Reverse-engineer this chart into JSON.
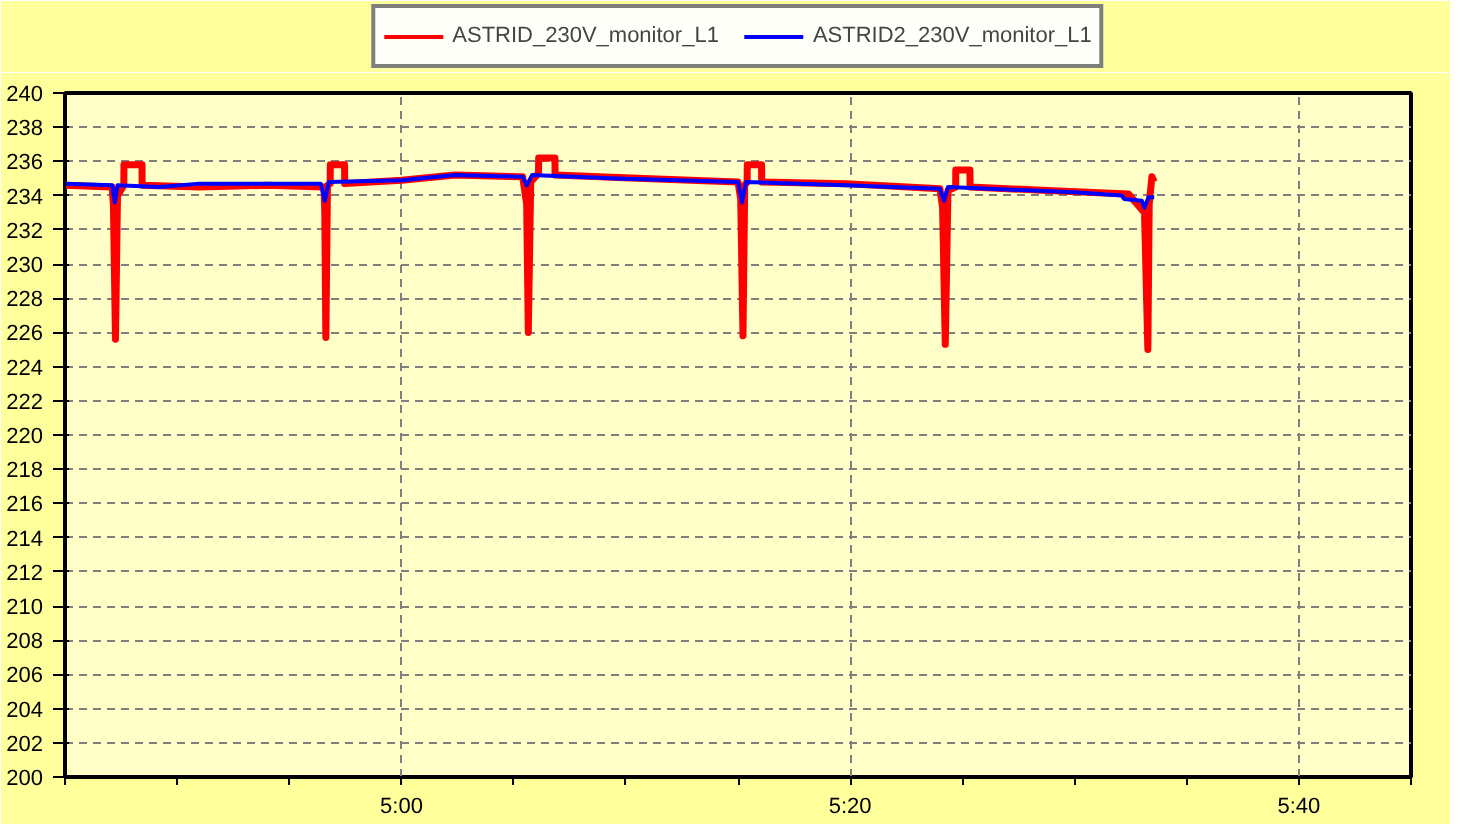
{
  "chart_data": {
    "type": "line",
    "xlim": [
      4.75,
      5.75
    ],
    "ylim": [
      200,
      240
    ],
    "xticks": [
      {
        "value": 4.75,
        "label": null
      },
      {
        "value": 4.8333,
        "label": null
      },
      {
        "value": 4.9167,
        "label": null
      },
      {
        "value": 5.0,
        "label": "5:00"
      },
      {
        "value": 5.0833,
        "label": null
      },
      {
        "value": 5.1667,
        "label": null
      },
      {
        "value": 5.25,
        "label": null
      },
      {
        "value": 5.3333,
        "label": "5:20"
      },
      {
        "value": 5.4167,
        "label": null
      },
      {
        "value": 5.5,
        "label": null
      },
      {
        "value": 5.5833,
        "label": null
      },
      {
        "value": 5.6667,
        "label": "5:40"
      },
      {
        "value": 5.75,
        "label": null
      }
    ],
    "yticks": [
      200,
      202,
      204,
      206,
      208,
      210,
      212,
      214,
      216,
      218,
      220,
      222,
      224,
      226,
      228,
      230,
      232,
      234,
      236,
      238,
      240
    ],
    "grid": true,
    "legend": "top",
    "line_style": "solid",
    "marker": "none",
    "series": [
      {
        "name": "ASTRID_230V_monitor_L1",
        "color": "#ff0000",
        "x": [
          4.75,
          4.785,
          4.786,
          4.7875,
          4.789,
          4.7937,
          4.7938,
          4.8072,
          4.8073,
          4.85,
          4.9,
          4.9425,
          4.943,
          4.9438,
          4.945,
          4.947,
          4.9471,
          4.9577,
          4.9578,
          5.0,
          5.04,
          5.09,
          5.093,
          5.0942,
          5.096,
          5.1018,
          5.1019,
          5.114,
          5.1141,
          5.18,
          5.25,
          5.252,
          5.2537,
          5.255,
          5.2568,
          5.2569,
          5.2675,
          5.2676,
          5.33,
          5.4,
          5.402,
          5.404,
          5.406,
          5.4117,
          5.4118,
          5.4223,
          5.4224,
          5.48,
          5.54,
          5.552,
          5.5545,
          5.5555,
          5.5575,
          5.5592
        ],
        "values": [
          234.6,
          234.5,
          233.4,
          225.6,
          234.0,
          234.6,
          235.8,
          235.8,
          234.6,
          234.5,
          234.6,
          234.5,
          233.0,
          225.7,
          234.6,
          234.7,
          235.8,
          235.8,
          234.7,
          234.9,
          235.2,
          235.1,
          233.5,
          226.0,
          234.8,
          235.3,
          236.2,
          236.2,
          235.2,
          235.0,
          234.8,
          233.8,
          225.8,
          234.6,
          234.8,
          235.8,
          235.8,
          234.8,
          234.7,
          234.4,
          233.3,
          225.3,
          234.3,
          234.5,
          235.5,
          235.5,
          234.5,
          234.3,
          234.1,
          233.0,
          225.0,
          233.5,
          235.1,
          234.8
        ]
      },
      {
        "name": "ASTRID2_230V_monitor_L1",
        "color": "#0000ff",
        "x": [
          4.75,
          4.785,
          4.787,
          4.789,
          4.82,
          4.85,
          4.94,
          4.943,
          4.946,
          5.0,
          5.04,
          5.09,
          5.093,
          5.097,
          5.16,
          5.25,
          5.253,
          5.256,
          5.33,
          5.4,
          5.403,
          5.406,
          5.5,
          5.535,
          5.537,
          5.55,
          5.552,
          5.555,
          5.5592
        ],
        "values": [
          234.7,
          234.6,
          233.6,
          234.6,
          234.5,
          234.7,
          234.7,
          233.7,
          234.8,
          234.9,
          235.2,
          235.1,
          234.6,
          235.2,
          235.0,
          234.8,
          233.6,
          234.8,
          234.6,
          234.4,
          233.7,
          234.5,
          234.2,
          234.0,
          233.8,
          233.7,
          233.3,
          233.9,
          233.9
        ]
      }
    ]
  }
}
